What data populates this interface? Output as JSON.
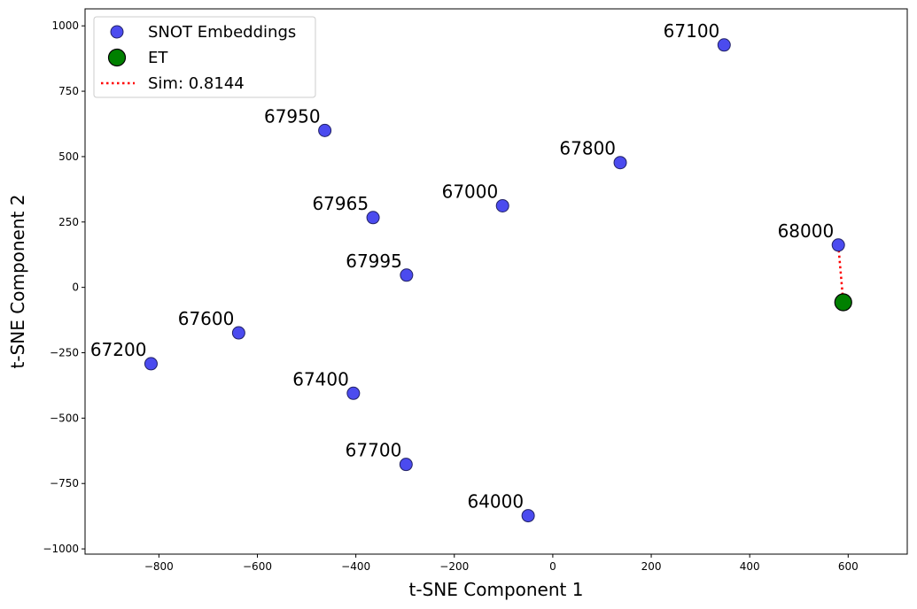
{
  "chart_data": {
    "type": "scatter",
    "title": "",
    "xlabel": "t-SNE Component 1",
    "ylabel": "t-SNE Component 2",
    "xlim": [
      -950,
      720
    ],
    "ylim": [
      -1020,
      1065
    ],
    "x_ticks": [
      -800,
      -600,
      -400,
      -200,
      0,
      200,
      400,
      600
    ],
    "y_ticks": [
      -1000,
      -750,
      -500,
      -250,
      0,
      250,
      500,
      750,
      1000
    ],
    "grid": false,
    "legend_position": "top-left",
    "series": [
      {
        "name": "SNOT Embeddings",
        "color": "#4b4bef",
        "points": [
          {
            "label": "67100",
            "x": 348,
            "y": 927
          },
          {
            "label": "67950",
            "x": -463,
            "y": 600
          },
          {
            "label": "67800",
            "x": 137,
            "y": 477
          },
          {
            "label": "67000",
            "x": -102,
            "y": 312
          },
          {
            "label": "67965",
            "x": -365,
            "y": 267
          },
          {
            "label": "68000",
            "x": 580,
            "y": 162
          },
          {
            "label": "67995",
            "x": -297,
            "y": 47
          },
          {
            "label": "67600",
            "x": -638,
            "y": -174
          },
          {
            "label": "67200",
            "x": -816,
            "y": -292
          },
          {
            "label": "67400",
            "x": -405,
            "y": -405
          },
          {
            "label": "67700",
            "x": -298,
            "y": -677
          },
          {
            "label": "64000",
            "x": -50,
            "y": -873
          }
        ]
      },
      {
        "name": "ET",
        "color": "#008000",
        "points": [
          {
            "x": 590,
            "y": -57
          }
        ]
      },
      {
        "name": "Sim: 0.8144",
        "type": "line",
        "style": "dotted",
        "color": "#ff0000",
        "points": [
          {
            "x": 580,
            "y": 162
          },
          {
            "x": 590,
            "y": -57
          }
        ]
      }
    ]
  }
}
